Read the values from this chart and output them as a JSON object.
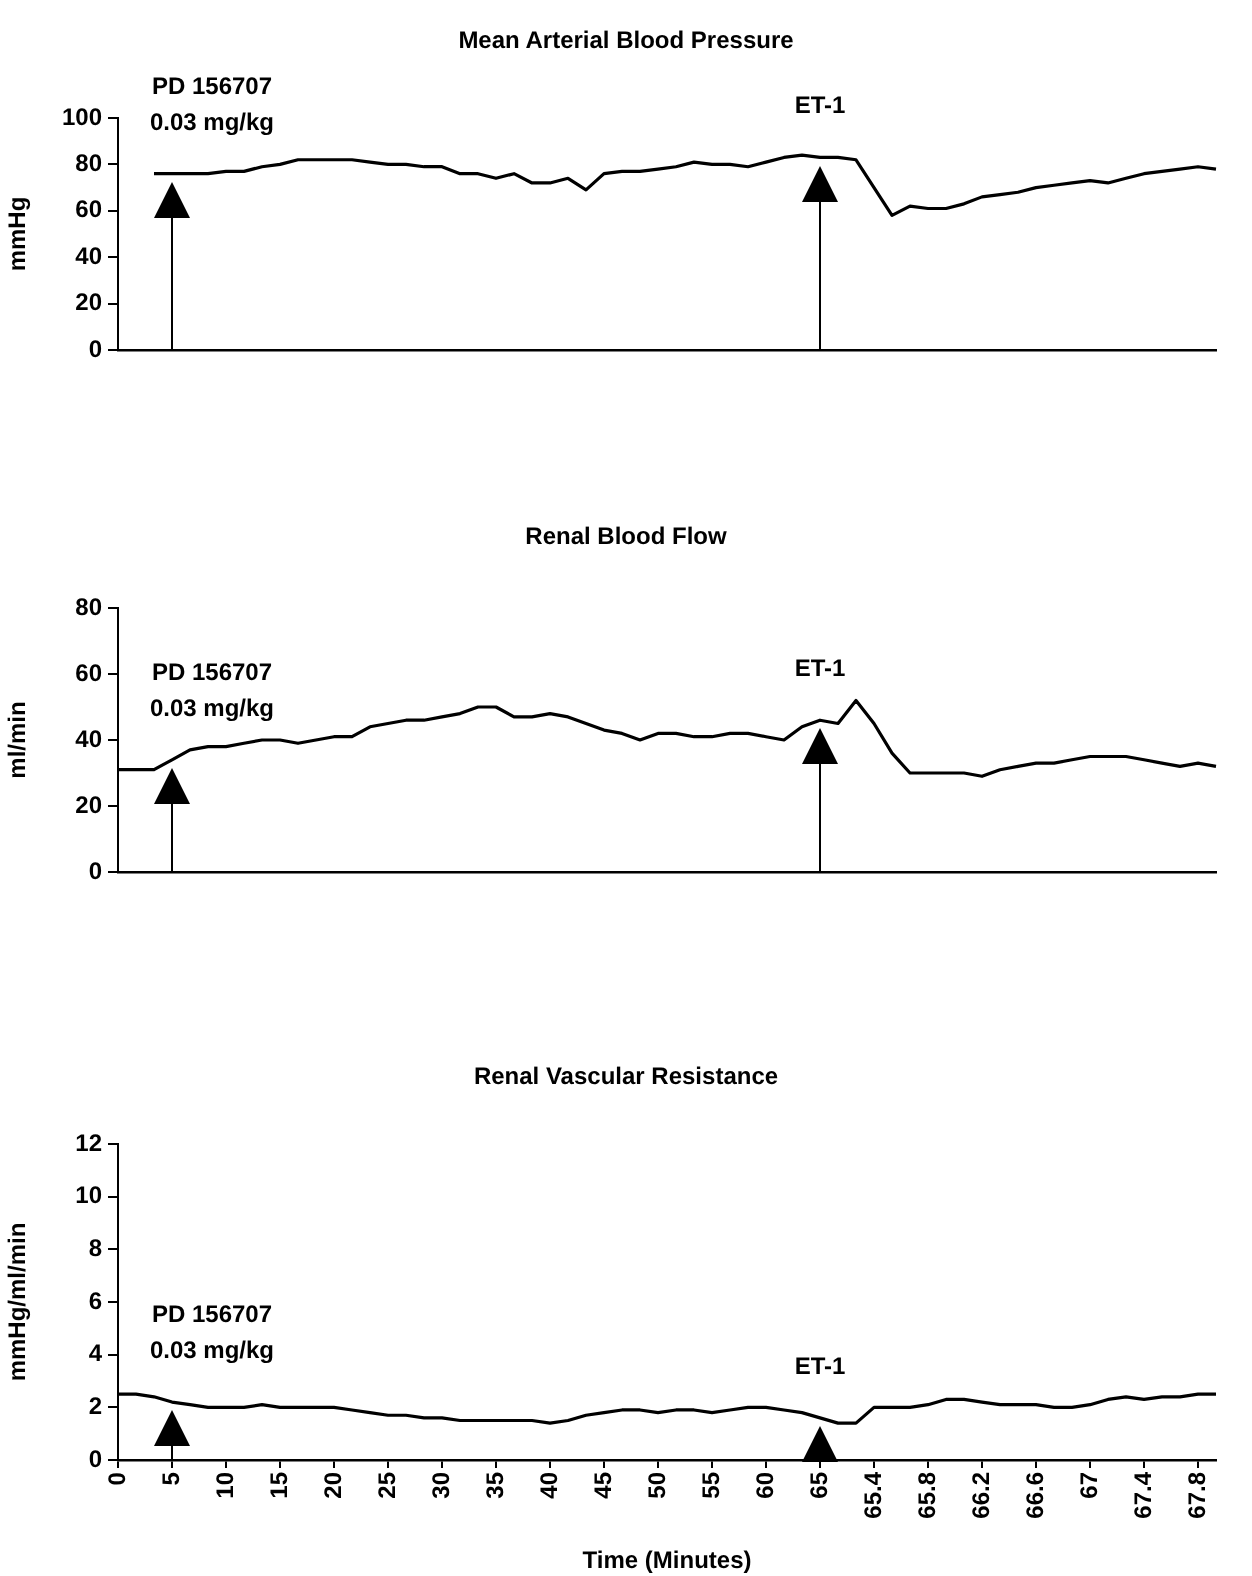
{
  "chart_data": [
    {
      "type": "line",
      "title": "Mean Arterial Blood Pressure",
      "ylabel": "mmHg",
      "tick_labels": "y",
      "marker": "none",
      "line_style": "solid",
      "color": "#000000",
      "categories": [
        "0",
        null,
        null,
        "5",
        null,
        null,
        "10",
        null,
        null,
        "15",
        null,
        null,
        "20",
        null,
        null,
        "25",
        null,
        null,
        "30",
        null,
        null,
        "35",
        null,
        null,
        "40",
        null,
        null,
        "45",
        null,
        null,
        "50",
        null,
        null,
        "55",
        null,
        null,
        "60",
        null,
        null,
        "65",
        null,
        null,
        "65.4",
        null,
        null,
        "65.8",
        null,
        null,
        "66.2",
        null,
        null,
        "66.6",
        null,
        null,
        "67",
        null,
        null,
        "67.4",
        null,
        null,
        "67.8",
        null
      ],
      "values": [
        null,
        null,
        76,
        76,
        76,
        76,
        77,
        77,
        79,
        80,
        82,
        82,
        82,
        82,
        81,
        80,
        80,
        79,
        79,
        76,
        76,
        74,
        76,
        72,
        72,
        74,
        69,
        76,
        77,
        77,
        78,
        79,
        81,
        80,
        80,
        79,
        81,
        83,
        84,
        83,
        83,
        82,
        70,
        58,
        62,
        61,
        61,
        63,
        66,
        67,
        68,
        70,
        71,
        72,
        73,
        72,
        74,
        76,
        77,
        78,
        79,
        78
      ],
      "ylim": [
        0,
        100
      ],
      "yticks": [
        0,
        20,
        40,
        60,
        80,
        100
      ],
      "annotations": [
        {
          "text": "PD 156707\n0.03 mg/kg",
          "x": "5",
          "y": 76
        },
        {
          "text": "ET-1",
          "x": "65",
          "y": 83
        }
      ]
    },
    {
      "type": "line",
      "title": "Renal Blood Flow",
      "ylabel": "ml/min",
      "tick_labels": "y",
      "marker": "none",
      "line_style": "solid",
      "color": "#000000",
      "categories": [
        "0",
        null,
        null,
        "5",
        null,
        null,
        "10",
        null,
        null,
        "15",
        null,
        null,
        "20",
        null,
        null,
        "25",
        null,
        null,
        "30",
        null,
        null,
        "35",
        null,
        null,
        "40",
        null,
        null,
        "45",
        null,
        null,
        "50",
        null,
        null,
        "55",
        null,
        null,
        "60",
        null,
        null,
        "65",
        null,
        null,
        "65.4",
        null,
        null,
        "65.8",
        null,
        null,
        "66.2",
        null,
        null,
        "66.6",
        null,
        null,
        "67",
        null,
        null,
        "67.4",
        null,
        null,
        "67.8",
        null
      ],
      "values": [
        31,
        31,
        31,
        34,
        37,
        38,
        38,
        39,
        40,
        40,
        39,
        40,
        41,
        41,
        44,
        45,
        46,
        46,
        47,
        48,
        50,
        50,
        47,
        47,
        48,
        47,
        45,
        43,
        42,
        40,
        42,
        42,
        41,
        41,
        42,
        42,
        41,
        40,
        44,
        46,
        45,
        52,
        45,
        36,
        30,
        30,
        30,
        30,
        29,
        31,
        32,
        33,
        33,
        34,
        35,
        35,
        35,
        34,
        33,
        32,
        33,
        32
      ],
      "ylim": [
        0,
        80
      ],
      "yticks": [
        0,
        20,
        40,
        60,
        80
      ],
      "annotations": [
        {
          "text": "PD 156707\n0.03 mg/kg",
          "x": "5",
          "y": 34
        },
        {
          "text": "ET-1",
          "x": "65",
          "y": 46
        }
      ]
    },
    {
      "type": "line",
      "title": "Renal Vascular Resistance",
      "ylabel": "mmHg/ml/min",
      "xlabel": "Time (Minutes)",
      "marker": "none",
      "line_style": "solid",
      "color": "#000000",
      "categories": [
        "0",
        null,
        null,
        "5",
        null,
        null,
        "10",
        null,
        null,
        "15",
        null,
        null,
        "20",
        null,
        null,
        "25",
        null,
        null,
        "30",
        null,
        null,
        "35",
        null,
        null,
        "40",
        null,
        null,
        "45",
        null,
        null,
        "50",
        null,
        null,
        "55",
        null,
        null,
        "60",
        null,
        null,
        "65",
        null,
        null,
        "65.4",
        null,
        null,
        "65.8",
        null,
        null,
        "66.2",
        null,
        null,
        "66.6",
        null,
        null,
        "67",
        null,
        null,
        "67.4",
        null,
        null,
        "67.8",
        null
      ],
      "values": [
        2.5,
        2.5,
        2.4,
        2.2,
        2.1,
        2.0,
        2.0,
        2.0,
        2.1,
        2.0,
        2.0,
        2.0,
        2.0,
        1.9,
        1.8,
        1.7,
        1.7,
        1.6,
        1.6,
        1.5,
        1.5,
        1.5,
        1.5,
        1.5,
        1.4,
        1.5,
        1.7,
        1.8,
        1.9,
        1.9,
        1.8,
        1.9,
        1.9,
        1.8,
        1.9,
        2.0,
        2.0,
        1.9,
        1.8,
        1.6,
        1.4,
        1.4,
        2.0,
        2.0,
        2.0,
        2.1,
        2.3,
        2.3,
        2.2,
        2.1,
        2.1,
        2.1,
        2.0,
        2.0,
        2.1,
        2.3,
        2.4,
        2.3,
        2.4,
        2.4,
        2.5,
        2.5
      ],
      "ylim": [
        0,
        12
      ],
      "yticks": [
        0,
        2,
        4,
        6,
        8,
        10,
        12
      ],
      "annotations": [
        {
          "text": "PD 156707\n0.03 mg/kg",
          "x": "5",
          "y": 2.2
        },
        {
          "text": "ET-1",
          "x": "65",
          "y": 1.6
        }
      ]
    }
  ]
}
